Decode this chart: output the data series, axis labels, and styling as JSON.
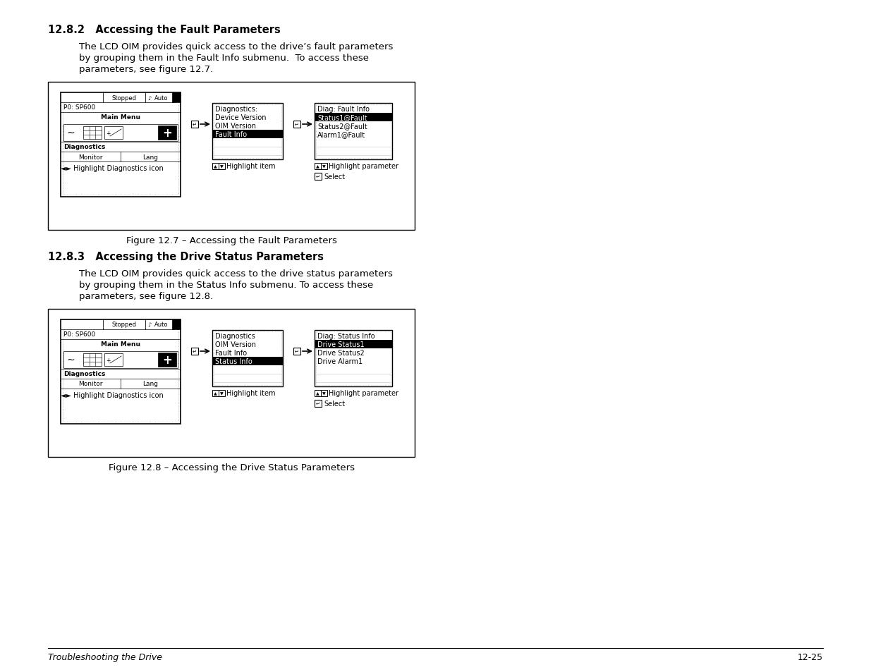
{
  "title_section1": "12.8.2   Accessing the Fault Parameters",
  "body1_line1": "The LCD OIM provides quick access to the drive’s fault parameters",
  "body1_line2": "by grouping them in the Fault Info submenu.  To access these",
  "body1_line3": "parameters, see figure 12.7.",
  "fig1_caption": "Figure 12.7 – Accessing the Fault Parameters",
  "title_section2": "12.8.3   Accessing the Drive Status Parameters",
  "body2_line1": "The LCD OIM provides quick access to the drive status parameters",
  "body2_line2": "by grouping them in the Status Info submenu. To access these",
  "body2_line3": "parameters, see figure 12.8.",
  "fig2_caption": "Figure 12.8 – Accessing the Drive Status Parameters",
  "footer_left": "Troubleshooting the Drive",
  "footer_right": "12-25",
  "bg_color": "#ffffff"
}
